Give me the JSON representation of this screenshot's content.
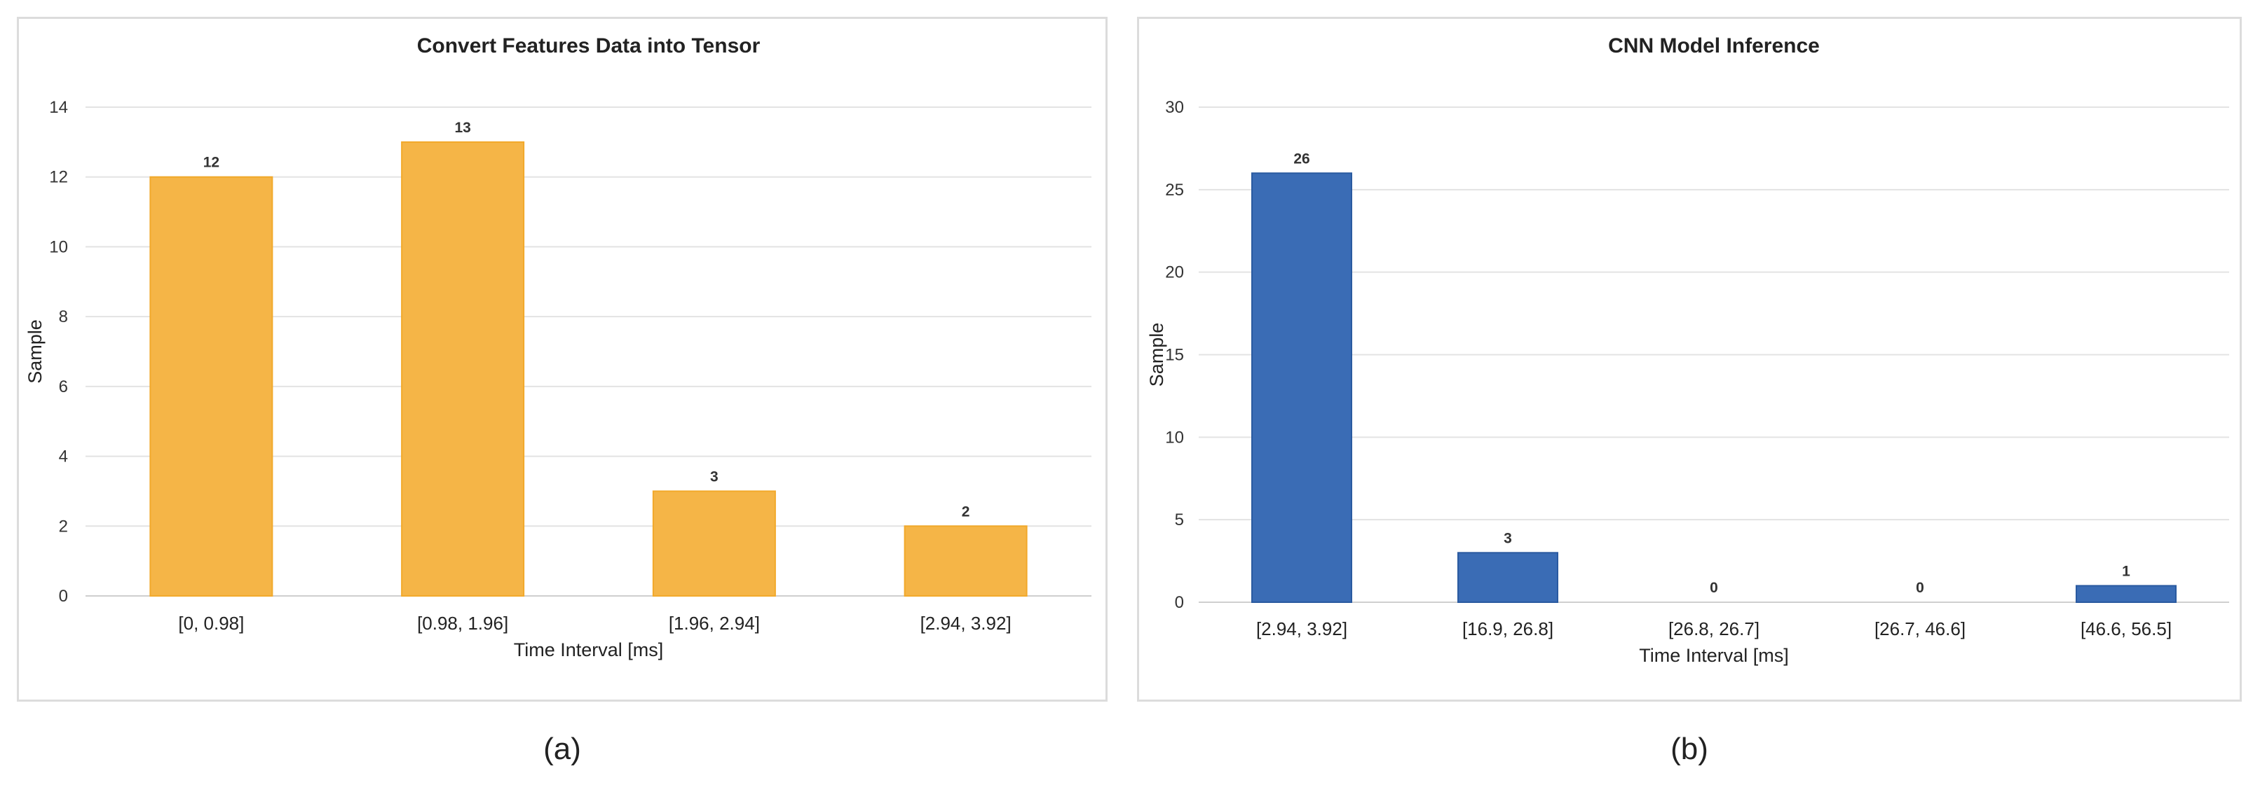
{
  "chart_data": [
    {
      "type": "bar",
      "title": "Convert Features Data into Tensor",
      "xlabel": "Time Interval [ms]",
      "ylabel": "Sample",
      "ylim": [
        0,
        14
      ],
      "yticks": [
        0,
        2,
        4,
        6,
        8,
        10,
        12,
        14
      ],
      "categories": [
        "[0, 0.98]",
        "[0.98, 1.96]",
        "[1.96, 2.94]",
        "[2.94, 3.92]"
      ],
      "values": [
        12,
        13,
        3,
        2
      ],
      "data_labels": true,
      "grid": true,
      "bar_color": "#F5B547",
      "bar_edge_color": "#F2A92B",
      "caption": "(a)"
    },
    {
      "type": "bar",
      "title": "CNN Model Inference",
      "xlabel": "Time Interval [ms]",
      "ylabel": "Sample",
      "ylim": [
        0,
        30
      ],
      "yticks": [
        0,
        5,
        10,
        15,
        20,
        25,
        30
      ],
      "categories": [
        "[2.94, 3.92]",
        "[16.9, 26.8]",
        "[26.8, 26.7]",
        "[26.7, 46.6]",
        "[46.6, 56.5]"
      ],
      "values": [
        26,
        3,
        0,
        0,
        1
      ],
      "data_labels": true,
      "grid": true,
      "bar_color": "#3A6CB5",
      "bar_edge_color": "#2A5AA0",
      "caption": "(b)"
    }
  ]
}
